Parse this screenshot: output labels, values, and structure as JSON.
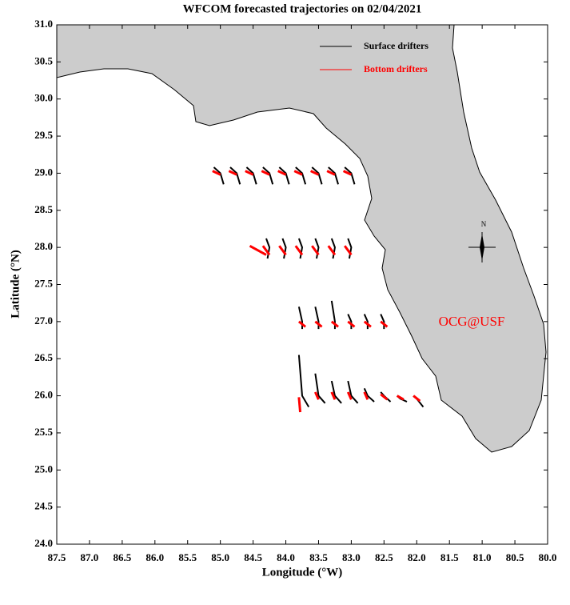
{
  "chart_data": {
    "type": "trajectory-map",
    "title": "WFCOM forecasted trajectories on 02/04/2021",
    "x_label": "Longitude (°W)",
    "y_label": "Latitude (°N)",
    "annotation": "OCG@USF",
    "compass_label": "N",
    "xlim": [
      87.5,
      80.0
    ],
    "ylim": [
      24.0,
      31.0
    ],
    "xticks": [
      87.5,
      {
        "value": 87,
        "label": "87.0"
      },
      86.5,
      {
        "value": 86,
        "label": "86.0"
      },
      85.5,
      {
        "value": 85,
        "label": "85.0"
      },
      84.5,
      {
        "value": 84,
        "label": "84.0"
      },
      83.5,
      {
        "value": 83,
        "label": "83.0"
      },
      82.5,
      {
        "value": 82,
        "label": "82.0"
      },
      81.5,
      {
        "value": 81,
        "label": "81.0"
      },
      80.5,
      {
        "value": 80,
        "label": "80.0"
      }
    ],
    "yticks": [
      {
        "value": 24,
        "label": "24.0"
      },
      24.5,
      {
        "value": 25,
        "label": "25.0"
      },
      25.5,
      {
        "value": 26,
        "label": "26.0"
      },
      26.5,
      {
        "value": 27,
        "label": "27.0"
      },
      27.5,
      {
        "value": 28,
        "label": "28.0"
      },
      28.5,
      {
        "value": 29,
        "label": "29.0"
      },
      29.5,
      {
        "value": 30,
        "label": "30.0"
      },
      30.5,
      {
        "value": 31,
        "label": "31.0"
      }
    ],
    "series": [
      {
        "name": "Surface drifters",
        "color": "#000000",
        "tracks": [
          {
            "x": [
              85.1,
              85.0,
              84.95
            ],
            "y": [
              29.08,
              29.0,
              28.85
            ]
          },
          {
            "x": [
              84.85,
              84.75,
              84.7
            ],
            "y": [
              29.08,
              29.0,
              28.85
            ]
          },
          {
            "x": [
              84.6,
              84.5,
              84.45
            ],
            "y": [
              29.08,
              29.0,
              28.85
            ]
          },
          {
            "x": [
              84.35,
              84.25,
              84.2
            ],
            "y": [
              29.08,
              29.0,
              28.85
            ]
          },
          {
            "x": [
              84.1,
              84.0,
              83.95
            ],
            "y": [
              29.08,
              29.0,
              28.85
            ]
          },
          {
            "x": [
              83.85,
              83.75,
              83.7
            ],
            "y": [
              29.08,
              29.0,
              28.85
            ]
          },
          {
            "x": [
              83.6,
              83.5,
              83.45
            ],
            "y": [
              29.08,
              29.0,
              28.85
            ]
          },
          {
            "x": [
              83.35,
              83.25,
              83.2
            ],
            "y": [
              29.08,
              29.0,
              28.85
            ]
          },
          {
            "x": [
              83.1,
              83.0,
              82.95
            ],
            "y": [
              29.08,
              29.0,
              28.85
            ]
          },
          {
            "x": [
              84.3,
              84.25,
              84.28
            ],
            "y": [
              28.12,
              28.0,
              27.85
            ]
          },
          {
            "x": [
              84.05,
              84.0,
              84.03
            ],
            "y": [
              28.12,
              28.0,
              27.85
            ]
          },
          {
            "x": [
              83.8,
              83.75,
              83.78
            ],
            "y": [
              28.12,
              28.0,
              27.85
            ]
          },
          {
            "x": [
              83.55,
              83.5,
              83.53
            ],
            "y": [
              28.12,
              28.0,
              27.85
            ]
          },
          {
            "x": [
              83.3,
              83.25,
              83.28
            ],
            "y": [
              28.12,
              28.0,
              27.85
            ]
          },
          {
            "x": [
              83.05,
              83.0,
              83.03
            ],
            "y": [
              28.12,
              28.0,
              27.85
            ]
          },
          {
            "x": [
              83.8,
              83.75,
              83.75
            ],
            "y": [
              27.2,
              27.0,
              26.9
            ]
          },
          {
            "x": [
              83.55,
              83.5,
              83.5
            ],
            "y": [
              27.2,
              27.0,
              26.9
            ]
          },
          {
            "x": [
              83.3,
              83.25,
              83.25
            ],
            "y": [
              27.28,
              27.0,
              26.9
            ]
          },
          {
            "x": [
              83.05,
              83.0,
              83.0
            ],
            "y": [
              27.1,
              27.0,
              26.9
            ]
          },
          {
            "x": [
              82.8,
              82.75,
              82.75
            ],
            "y": [
              27.1,
              27.0,
              26.9
            ]
          },
          {
            "x": [
              82.55,
              82.5,
              82.5
            ],
            "y": [
              27.1,
              27.0,
              26.9
            ]
          },
          {
            "x": [
              83.8,
              83.75,
              83.65
            ],
            "y": [
              26.55,
              26.0,
              25.85
            ]
          },
          {
            "x": [
              83.55,
              83.5,
              83.4
            ],
            "y": [
              26.3,
              26.0,
              25.9
            ]
          },
          {
            "x": [
              83.3,
              83.25,
              83.15
            ],
            "y": [
              26.2,
              26.0,
              25.9
            ]
          },
          {
            "x": [
              83.05,
              83.0,
              82.9
            ],
            "y": [
              26.2,
              26.0,
              25.9
            ]
          },
          {
            "x": [
              82.8,
              82.75,
              82.65
            ],
            "y": [
              26.1,
              26.0,
              25.92
            ]
          },
          {
            "x": [
              82.55,
              82.5,
              82.4
            ],
            "y": [
              26.05,
              26.0,
              25.92
            ]
          },
          {
            "x": [
              82.3,
              82.25,
              82.15
            ],
            "y": [
              26.0,
              25.96,
              25.92
            ]
          },
          {
            "x": [
              82.05,
              82.0,
              81.9
            ],
            "y": [
              26.0,
              25.96,
              25.85
            ]
          }
        ]
      },
      {
        "name": "Bottom drifters",
        "color": "#ff0000",
        "tracks": [
          {
            "x": [
              85.12,
              85.0
            ],
            "y": [
              29.03,
              28.98
            ]
          },
          {
            "x": [
              84.87,
              84.75
            ],
            "y": [
              29.03,
              28.98
            ]
          },
          {
            "x": [
              84.62,
              84.5
            ],
            "y": [
              29.03,
              28.98
            ]
          },
          {
            "x": [
              84.37,
              84.25
            ],
            "y": [
              29.03,
              28.98
            ]
          },
          {
            "x": [
              84.12,
              84.0
            ],
            "y": [
              29.03,
              28.98
            ]
          },
          {
            "x": [
              83.87,
              83.75
            ],
            "y": [
              29.03,
              28.98
            ]
          },
          {
            "x": [
              83.62,
              83.5
            ],
            "y": [
              29.03,
              28.98
            ]
          },
          {
            "x": [
              83.37,
              83.25
            ],
            "y": [
              29.03,
              28.98
            ]
          },
          {
            "x": [
              83.12,
              83.0
            ],
            "y": [
              29.03,
              28.98
            ]
          },
          {
            "x": [
              84.55,
              84.3
            ],
            "y": [
              28.02,
              27.9
            ]
          },
          {
            "x": [
              84.35,
              84.25
            ],
            "y": [
              28.02,
              27.9
            ]
          },
          {
            "x": [
              84.1,
              84.0
            ],
            "y": [
              28.02,
              27.9
            ]
          },
          {
            "x": [
              83.85,
              83.75
            ],
            "y": [
              28.02,
              27.9
            ]
          },
          {
            "x": [
              83.6,
              83.5
            ],
            "y": [
              28.02,
              27.9
            ]
          },
          {
            "x": [
              83.35,
              83.25
            ],
            "y": [
              28.02,
              27.9
            ]
          },
          {
            "x": [
              83.1,
              83.0
            ],
            "y": [
              28.02,
              27.9
            ]
          },
          {
            "x": [
              83.8,
              83.7
            ],
            "y": [
              27.0,
              26.93
            ]
          },
          {
            "x": [
              83.55,
              83.45
            ],
            "y": [
              27.0,
              26.93
            ]
          },
          {
            "x": [
              83.3,
              83.2
            ],
            "y": [
              27.0,
              26.93
            ]
          },
          {
            "x": [
              83.05,
              82.95
            ],
            "y": [
              27.0,
              26.93
            ]
          },
          {
            "x": [
              82.8,
              82.7
            ],
            "y": [
              27.0,
              26.93
            ]
          },
          {
            "x": [
              82.55,
              82.45
            ],
            "y": [
              27.0,
              26.93
            ]
          },
          {
            "x": [
              83.8,
              83.78
            ],
            "y": [
              25.98,
              25.78
            ]
          },
          {
            "x": [
              83.55,
              83.5
            ],
            "y": [
              26.05,
              25.95
            ]
          },
          {
            "x": [
              83.3,
              83.25
            ],
            "y": [
              26.05,
              25.95
            ]
          },
          {
            "x": [
              83.05,
              83.0
            ],
            "y": [
              26.05,
              25.95
            ]
          },
          {
            "x": [
              82.8,
              82.75
            ],
            "y": [
              26.05,
              25.95
            ]
          },
          {
            "x": [
              82.55,
              82.45
            ],
            "y": [
              26.02,
              25.95
            ]
          },
          {
            "x": [
              82.3,
              82.2
            ],
            "y": [
              26.0,
              25.95
            ]
          },
          {
            "x": [
              82.05,
              81.95
            ],
            "y": [
              26.0,
              25.93
            ]
          }
        ]
      }
    ]
  }
}
